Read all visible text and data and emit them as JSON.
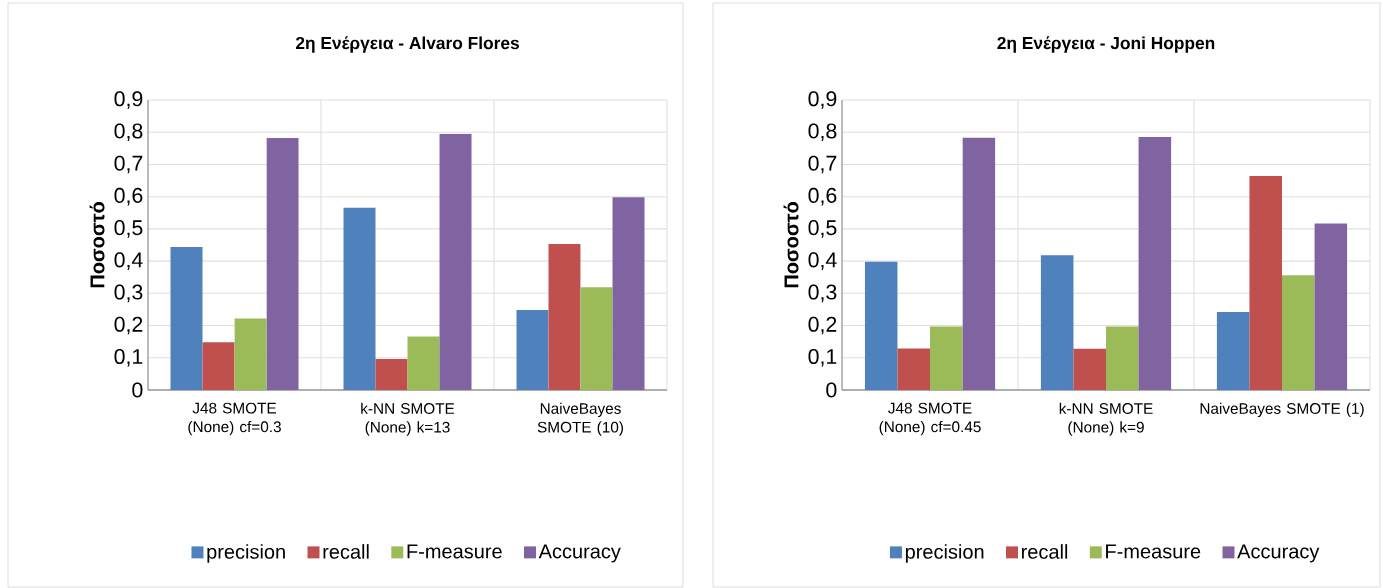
{
  "chart_data": [
    {
      "type": "bar",
      "title": "2η Ενέργεια - Alvaro Flores",
      "ylabel": "Ποσοστό",
      "categories": [
        "J48 SMOTE (None) cf=0.3",
        "k-NN SMOTE (None)  k=13",
        "NaiveBayes SMOTE (10)"
      ],
      "series": [
        {
          "name": "precision",
          "color": "#4f81bd",
          "values": [
            0.444,
            0.566,
            0.248
          ]
        },
        {
          "name": "recall",
          "color": "#c0504d",
          "values": [
            0.148,
            0.096,
            0.453
          ]
        },
        {
          "name": "F-measure",
          "color": "#9bbb59",
          "values": [
            0.222,
            0.166,
            0.319
          ]
        },
        {
          "name": "Accuracy",
          "color": "#8064a2",
          "values": [
            0.782,
            0.795,
            0.598
          ]
        }
      ],
      "ylim": [
        0,
        0.9
      ],
      "yticks": [
        0,
        {
          "value": 0.1,
          "label": "0,1"
        },
        {
          "value": 0.2,
          "label": "0,2"
        },
        {
          "value": 0.3,
          "label": "0,3"
        },
        {
          "value": 0.4,
          "label": "0,4"
        },
        {
          "value": 0.5,
          "label": "0,5"
        },
        {
          "value": 0.6,
          "label": "0,6"
        },
        {
          "value": 0.7,
          "label": "0,7"
        },
        {
          "value": 0.8,
          "label": "0,8"
        },
        {
          "value": 0.9,
          "label": "0,9"
        }
      ],
      "grid": true,
      "legend": "bottom"
    },
    {
      "type": "bar",
      "title": "2η Ενέργεια - Joni Hoppen",
      "ylabel": "Ποσοστό",
      "categories": [
        "J48 SMOTE (None) cf=0.45",
        "k-NN SMOTE (None)  k=9",
        "NaiveBayes SMOTE (1)"
      ],
      "series": [
        {
          "name": "precision",
          "color": "#4f81bd",
          "values": [
            0.398,
            0.418,
            0.242
          ]
        },
        {
          "name": "recall",
          "color": "#c0504d",
          "values": [
            0.129,
            0.128,
            0.664
          ]
        },
        {
          "name": "F-measure",
          "color": "#9bbb59",
          "values": [
            0.197,
            0.197,
            0.356
          ]
        },
        {
          "name": "Accuracy",
          "color": "#8064a2",
          "values": [
            0.783,
            0.785,
            0.517
          ]
        }
      ],
      "ylim": [
        0,
        0.9
      ],
      "yticks": [
        0,
        {
          "value": 0.1,
          "label": "0,1"
        },
        {
          "value": 0.2,
          "label": "0,2"
        },
        {
          "value": 0.3,
          "label": "0,3"
        },
        {
          "value": 0.4,
          "label": "0,4"
        },
        {
          "value": 0.5,
          "label": "0,5"
        },
        {
          "value": 0.6,
          "label": "0,6"
        },
        {
          "value": 0.7,
          "label": "0,7"
        },
        {
          "value": 0.8,
          "label": "0,8"
        },
        {
          "value": 0.9,
          "label": "0,9"
        }
      ],
      "grid": true,
      "legend": "bottom"
    }
  ]
}
